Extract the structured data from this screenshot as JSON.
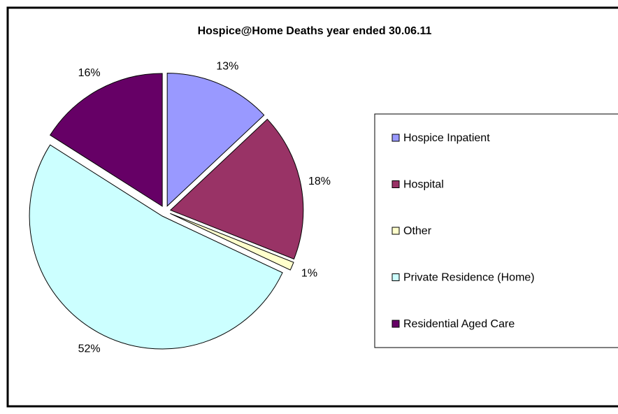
{
  "chart_data": {
    "type": "pie",
    "title": "Hospice@Home Deaths year ended 30.06.11",
    "categories": [
      "Hospice Inpatient",
      "Hospital",
      "Other",
      "Private Residence (Home)",
      "Residential Aged Care"
    ],
    "values": [
      13,
      18,
      1,
      52,
      16
    ],
    "value_labels": [
      "13%",
      "18%",
      "1%",
      "52%",
      "16%"
    ],
    "colors": [
      "#9999ff",
      "#993366",
      "#ffffcc",
      "#ccffff",
      "#660066"
    ],
    "legend": "right"
  }
}
